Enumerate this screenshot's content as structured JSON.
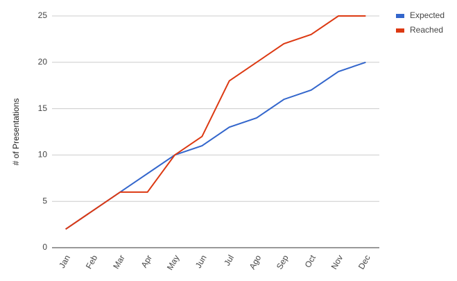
{
  "chart_data": {
    "type": "line",
    "y_label": "# of Presentations",
    "categories": [
      "Jan",
      "Feb",
      "Mar",
      "Apr",
      "May",
      "Jun",
      "Jul",
      "Ago",
      "Sep",
      "Oct",
      "Nov",
      "Dec"
    ],
    "series": [
      {
        "name": "Expected",
        "color": "#3366cc",
        "values": [
          2,
          4,
          6,
          8,
          10,
          11,
          13,
          14,
          16,
          17,
          19,
          20
        ]
      },
      {
        "name": "Reached",
        "color": "#dc3912",
        "values": [
          2,
          4,
          6,
          6,
          10,
          12,
          18,
          20,
          22,
          23,
          25,
          25
        ]
      }
    ],
    "ylim": [
      0,
      25
    ],
    "yticks": [
      0,
      5,
      10,
      15,
      20,
      25
    ],
    "grid": true,
    "legend": "right"
  }
}
